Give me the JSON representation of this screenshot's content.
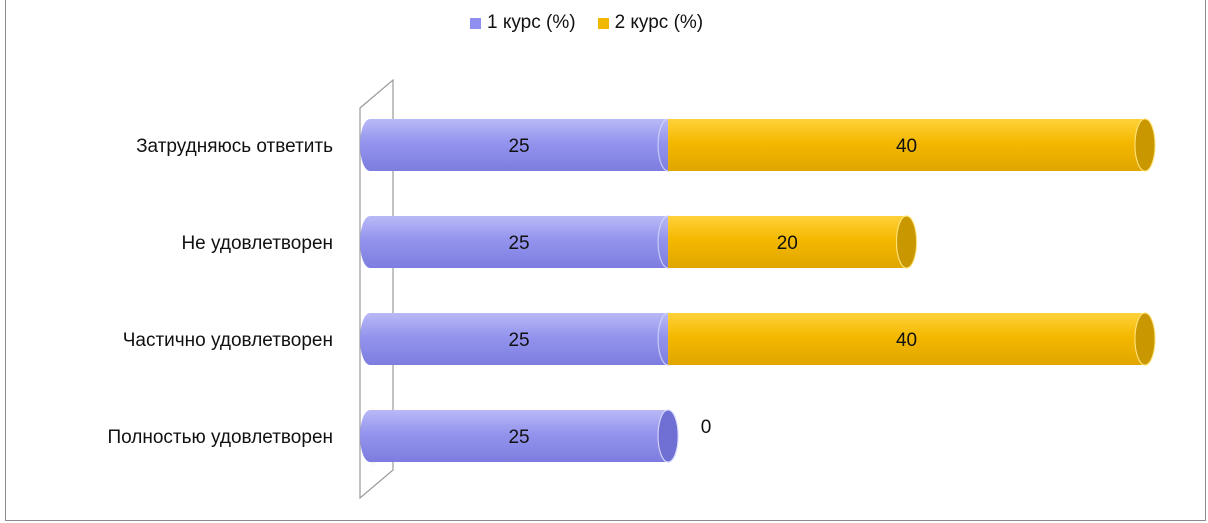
{
  "chart_data": {
    "type": "bar",
    "orientation": "horizontal",
    "stacked": true,
    "categories": [
      "Затрудняюсь ответить",
      "Не удовлетворен",
      "Частично удовлетворен",
      "Полностью удовлетворен"
    ],
    "series": [
      {
        "name": "1 курс (%)",
        "values": [
          25,
          25,
          25,
          25
        ],
        "color": "#8f8fef"
      },
      {
        "name": "2 курс (%)",
        "values": [
          40,
          20,
          40,
          0
        ],
        "color": "#f0b800"
      }
    ],
    "data_labels": [
      [
        "25",
        "25",
        "25",
        "25"
      ],
      [
        "40",
        "20",
        "40",
        "0"
      ]
    ],
    "legend_position": "top",
    "grid": false,
    "style": "3d-cylinder"
  }
}
